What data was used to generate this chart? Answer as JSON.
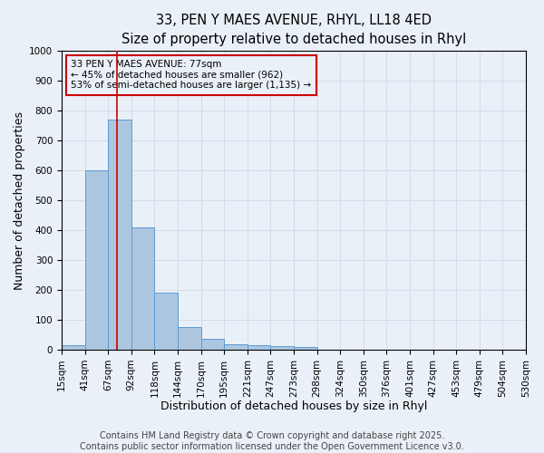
{
  "title_line1": "33, PEN Y MAES AVENUE, RHYL, LL18 4ED",
  "title_line2": "Size of property relative to detached houses in Rhyl",
  "xlabel": "Distribution of detached houses by size in Rhyl",
  "ylabel": "Number of detached properties",
  "bar_color": "#adc6e0",
  "bar_edge_color": "#5b9bd5",
  "bin_edges": [
    15,
    41,
    67,
    93,
    119,
    145,
    171,
    197,
    223,
    249,
    275,
    301,
    327,
    353,
    379,
    405,
    431,
    457,
    483,
    509,
    535
  ],
  "bin_labels": [
    "15sqm",
    "41sqm",
    "67sqm",
    "92sqm",
    "118sqm",
    "144sqm",
    "170sqm",
    "195sqm",
    "221sqm",
    "247sqm",
    "273sqm",
    "298sqm",
    "324sqm",
    "350sqm",
    "376sqm",
    "401sqm",
    "427sqm",
    "453sqm",
    "479sqm",
    "504sqm",
    "530sqm"
  ],
  "counts": [
    15,
    600,
    770,
    410,
    190,
    75,
    35,
    18,
    15,
    13,
    8,
    0,
    0,
    0,
    0,
    0,
    0,
    0,
    0,
    0
  ],
  "property_size": 77,
  "vline_color": "#cc0000",
  "annotation_line1": "33 PEN Y MAES AVENUE: 77sqm",
  "annotation_line2": "← 45% of detached houses are smaller (962)",
  "annotation_line3": "53% of semi-detached houses are larger (1,135) →",
  "annotation_box_color": "#cc0000",
  "ylim": [
    0,
    1000
  ],
  "yticks": [
    0,
    100,
    200,
    300,
    400,
    500,
    600,
    700,
    800,
    900,
    1000
  ],
  "grid_color": "#d0d8e8",
  "background_color": "#eaf0f8",
  "footer_text": "Contains HM Land Registry data © Crown copyright and database right 2025.\nContains public sector information licensed under the Open Government Licence v3.0.",
  "title_fontsize": 10.5,
  "subtitle_fontsize": 9.5,
  "axis_label_fontsize": 9,
  "tick_fontsize": 7.5,
  "annotation_fontsize": 7.5,
  "footer_fontsize": 7
}
